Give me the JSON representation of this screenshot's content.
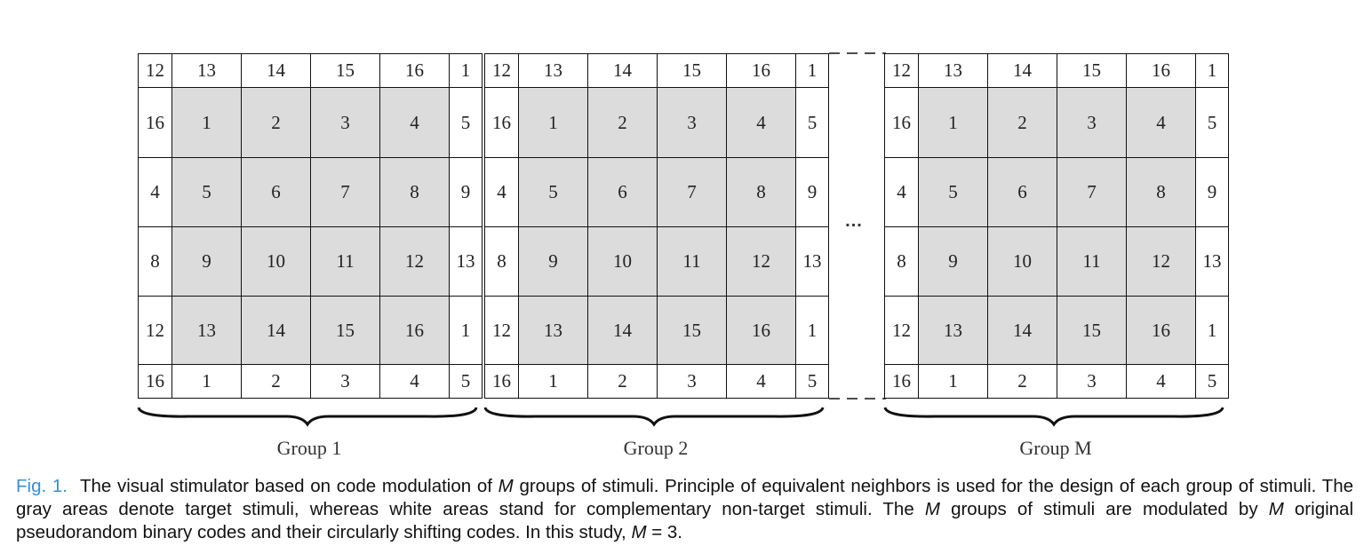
{
  "diagram": {
    "groups": [
      {
        "label": "Group 1"
      },
      {
        "label": "Group 2"
      },
      {
        "label": "Group M"
      }
    ],
    "rows": [
      [
        "12",
        "13",
        "14",
        "15",
        "16",
        "1"
      ],
      [
        "16",
        "1",
        "2",
        "3",
        "4",
        "5"
      ],
      [
        "4",
        "5",
        "6",
        "7",
        "8",
        "9"
      ],
      [
        "8",
        "9",
        "10",
        "11",
        "12",
        "13"
      ],
      [
        "12",
        "13",
        "14",
        "15",
        "16",
        "1"
      ],
      [
        "16",
        "1",
        "2",
        "3",
        "4",
        "5"
      ]
    ],
    "target_cell_color": "#dcdcdc",
    "nontarget_cell_color": "#ffffff",
    "ellipsis": "..."
  },
  "caption": {
    "fig_label": "Fig. 1.",
    "part1": "The visual stimulator based on code modulation of ",
    "m1": "M",
    "part2": " groups of stimuli. Principle of equivalent neighbors is used for the design of each group of stimuli. The gray areas denote target stimuli, whereas white areas stand for complementary non-target stimuli. The ",
    "m2": "M",
    "part3": " groups of stimuli are modulated by ",
    "m3": "M",
    "part4": " original pseudorandom binary codes and their circularly shifting codes. In this study, ",
    "m4": "M",
    "part5": " = 3."
  },
  "fig_label_color": "#3a8fd0"
}
